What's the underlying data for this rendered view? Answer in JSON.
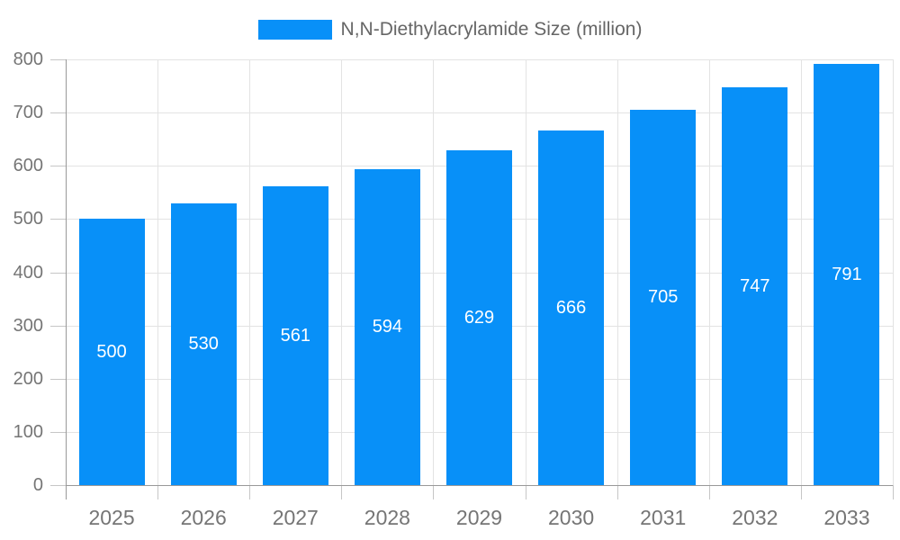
{
  "chart_data": {
    "type": "bar",
    "title": "",
    "series_name": "N,N-Diethylacrylamide Size (million)",
    "categories": [
      "2025",
      "2026",
      "2027",
      "2028",
      "2029",
      "2030",
      "2031",
      "2032",
      "2033"
    ],
    "values": [
      500,
      530,
      561,
      594,
      629,
      666,
      705,
      747,
      791
    ],
    "xlabel": "",
    "ylabel": "",
    "ylim": [
      0,
      800
    ],
    "ytick_step": 100,
    "grid": true,
    "bar_value_labels": "inside-center",
    "legend_position": "top-center",
    "colors": {
      "bar": "#0890f8",
      "bar_label": "#ffffff",
      "axis_text": "#757575",
      "legend_text": "#666666",
      "grid_line": "#e3e3e3",
      "axis_line": "#999999",
      "tick_line": "#c6c6c6",
      "background": "#ffffff"
    }
  }
}
